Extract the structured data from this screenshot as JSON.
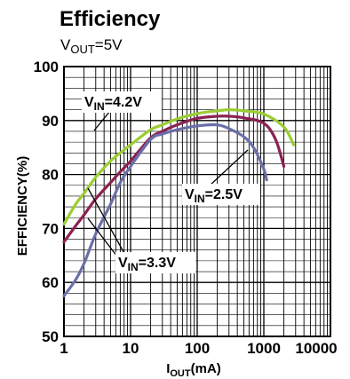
{
  "chart_data": {
    "type": "line",
    "title": "Efficiency",
    "subtitle": {
      "main": "V",
      "sub": "OUT",
      "rest": "=5V"
    },
    "xlabel": {
      "main": "I",
      "sub": "OUT",
      "rest": "(mA)"
    },
    "ylabel": "EFFICIENCY(%)",
    "x_scale": "log",
    "xlim": [
      1,
      10000
    ],
    "ylim": [
      50,
      100
    ],
    "x_ticks": [
      "1",
      "10",
      "100",
      "1000",
      "10000"
    ],
    "y_ticks": [
      "50",
      "60",
      "70",
      "80",
      "90",
      "100"
    ],
    "y_tick_values": [
      50,
      60,
      70,
      80,
      90,
      100
    ],
    "grid": true,
    "series": [
      {
        "name": "VIN=4.2V",
        "color": "#9ACD32",
        "x": [
          1,
          1.5,
          2,
          3,
          5,
          7,
          10,
          20,
          30,
          50,
          100,
          200,
          300,
          500,
          1000,
          2000,
          2800
        ],
        "y": [
          70.8,
          74.5,
          76.5,
          79.5,
          82.5,
          84,
          85.5,
          88.3,
          89.2,
          90.3,
          91.3,
          91.8,
          92,
          91.8,
          91.2,
          88.8,
          85.5
        ]
      },
      {
        "name": "VIN=3.3V",
        "color": "#8B2252",
        "x": [
          1,
          1.5,
          2,
          3,
          5,
          7,
          10,
          20,
          30,
          50,
          100,
          200,
          300,
          500,
          1000,
          1500,
          2000
        ],
        "y": [
          67.5,
          70.5,
          72.5,
          75.5,
          78.5,
          80.5,
          82.5,
          86.8,
          88,
          89.2,
          90.4,
          90.8,
          90.8,
          90.5,
          89.5,
          86.5,
          81.5
        ]
      },
      {
        "name": "VIN=2.5V",
        "color": "#6A6FA8",
        "x": [
          1,
          1.5,
          2,
          3,
          5,
          7,
          10,
          20,
          30,
          50,
          100,
          200,
          300,
          500,
          700,
          1000,
          1100
        ],
        "y": [
          57.5,
          60.5,
          63.5,
          69,
          74.5,
          78.5,
          81.5,
          86.5,
          87.5,
          88.3,
          89,
          89.2,
          88.5,
          87,
          85,
          81,
          79
        ]
      }
    ],
    "annotations": [
      {
        "main": "V",
        "sub": "IN",
        "rest": "=4.2V",
        "series": 0
      },
      {
        "main": "V",
        "sub": "IN",
        "rest": "=2.5V",
        "series": 2
      },
      {
        "main": "V",
        "sub": "IN",
        "rest": "=3.3V",
        "series": 1
      }
    ]
  }
}
